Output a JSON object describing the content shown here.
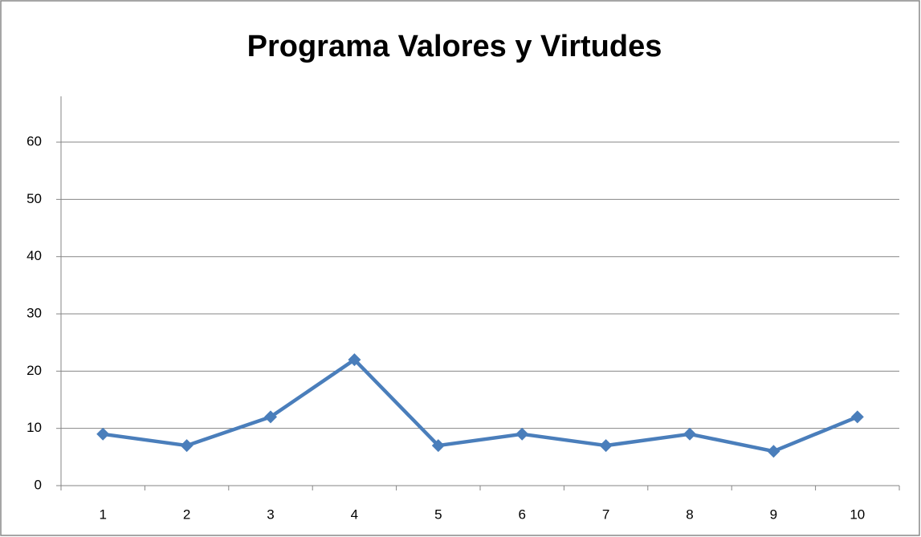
{
  "chart_data": {
    "type": "line",
    "title": "Programa Valores y Virtudes",
    "categories": [
      "1",
      "2",
      "3",
      "4",
      "5",
      "6",
      "7",
      "8",
      "9",
      "10"
    ],
    "series": [
      {
        "color": "#4a7ebb",
        "values": [
          9,
          7,
          12,
          22,
          7,
          9,
          7,
          9,
          6,
          12
        ]
      }
    ],
    "ylim": [
      0,
      68
    ],
    "yticks": [
      0,
      10,
      20,
      30,
      40,
      50,
      60
    ],
    "grid": true
  }
}
